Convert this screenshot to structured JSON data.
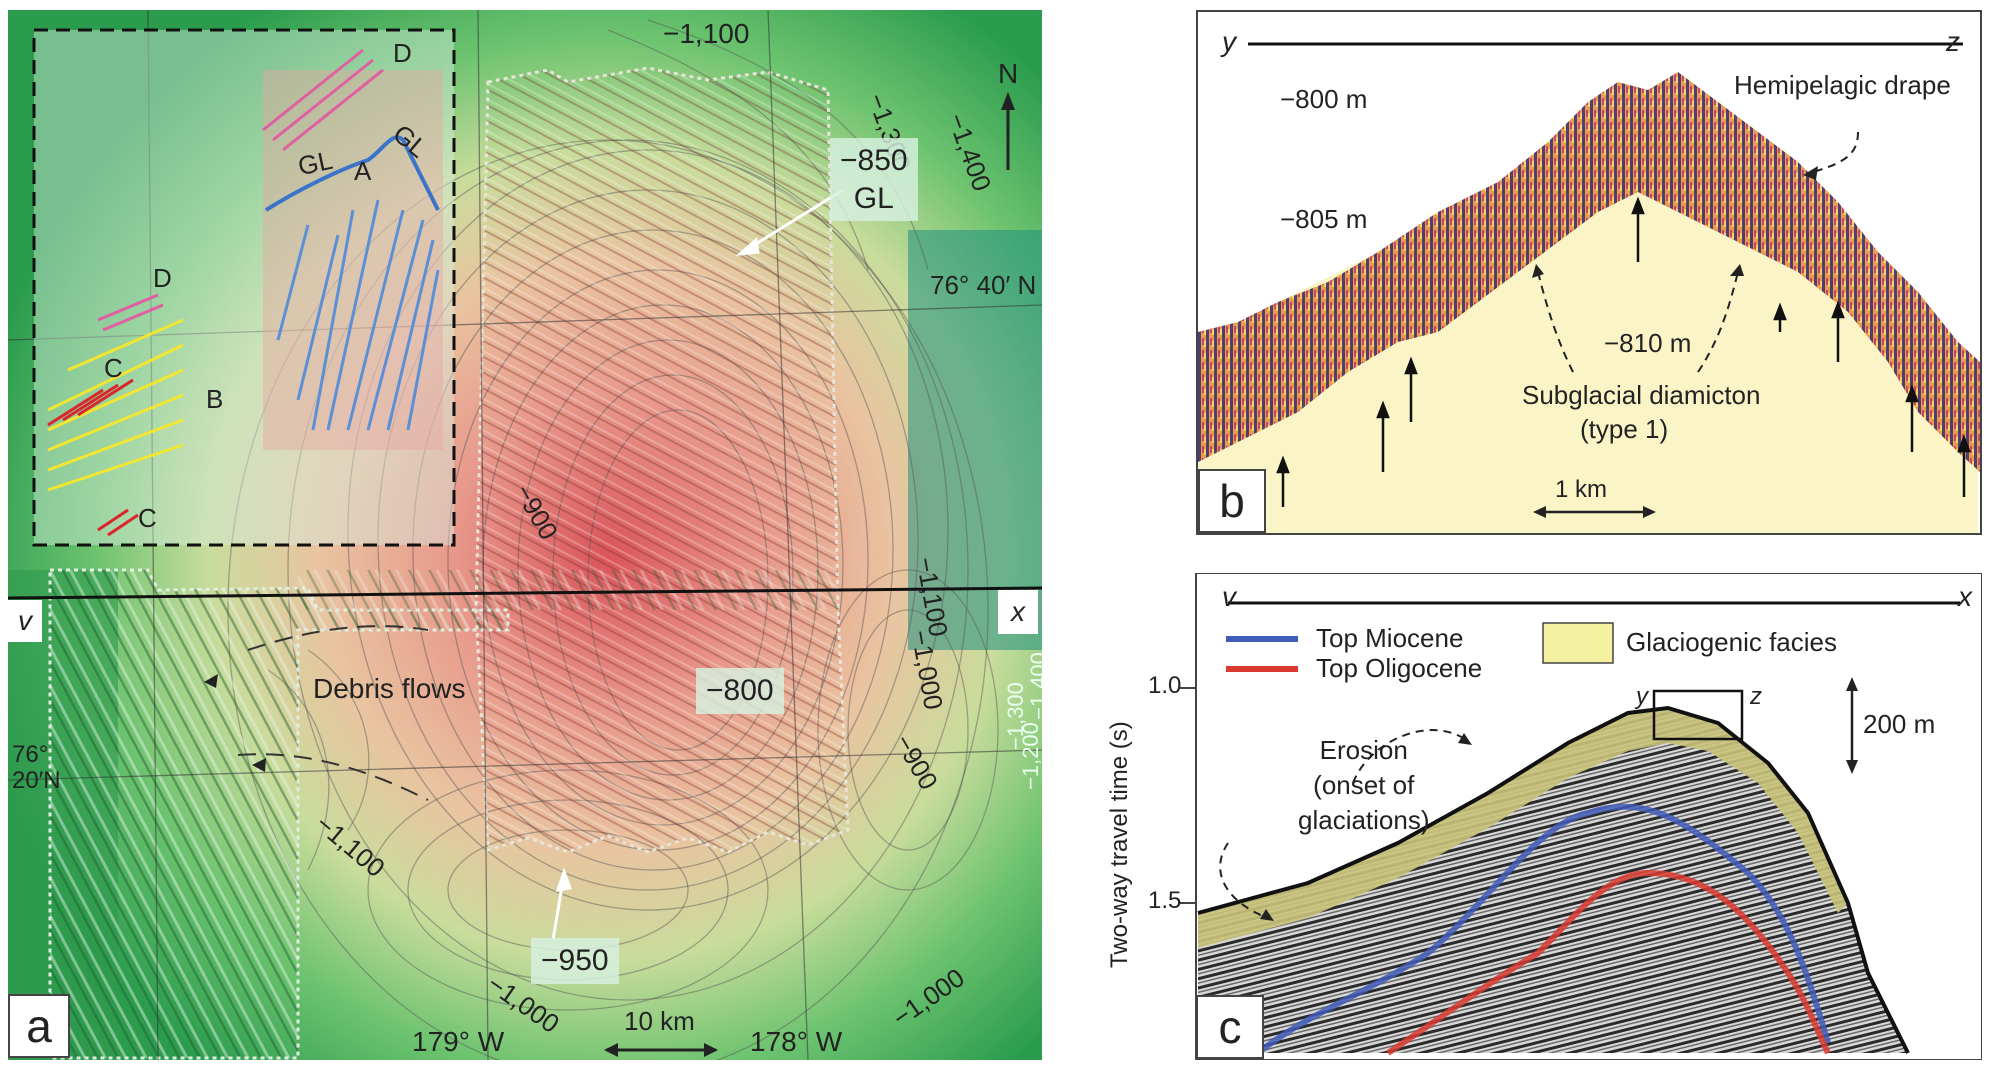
{
  "panel_a": {
    "letter": "a",
    "contours": [
      "−1,100",
      "−1,300",
      "−1,400",
      "−1,100",
      "−1,000",
      "−1,400",
      "−1,300",
      "−1,200",
      "−900",
      "−900",
      "−1,100",
      "−1,000",
      "−1,000"
    ],
    "tags": {
      "gl_depth": "−850",
      "gl_label": "GL",
      "center_depth": "−800",
      "south_depth": "−950"
    },
    "inset_labels": {
      "d1": "D",
      "d2": "D",
      "gl1": "GL",
      "gl2": "GL",
      "a": "A",
      "b": "B",
      "c1": "C",
      "c2": "C"
    },
    "debris_flows": "Debris flows",
    "lat_76_40": "76° 40′ N",
    "lat_76_20_a": "76°",
    "lat_76_20_b": "20′N",
    "lon_179": "179° W",
    "lon_178": "178° W",
    "scale": "10 km",
    "north": "N",
    "profile_v": "v",
    "profile_x": "x",
    "colors": {
      "blue_arrows": "#5b8fd6",
      "red_arrows": "#d9262b",
      "yellow_arrows": "#f2e632",
      "pink_arrows": "#e05fa0",
      "grounding_line": "#3a74c9"
    }
  },
  "panel_b": {
    "letter": "b",
    "y": "y",
    "z": "z",
    "depth_800": "−800 m",
    "depth_805": "−805 m",
    "depth_810": "−810 m",
    "drape": "Hemipelagic drape",
    "diamicton1": "Subglacial diamicton",
    "diamicton2": "(type 1)",
    "scale": "1 km",
    "colors": {
      "fill": "#fbf4c6"
    }
  },
  "panel_c": {
    "letter": "c",
    "v": "v",
    "x": "x",
    "y": "y",
    "z": "z",
    "legend_miocene": "Top Miocene",
    "legend_oligocene": "Top Oligocene",
    "legend_glacio": "Glaciogenic facies",
    "erosion1": "Erosion",
    "erosion2": "(onset of",
    "erosion3": "glaciations)",
    "ylabel": "Two-way travel time (s)",
    "tick_1": "1.0",
    "tick_15": "1.5",
    "scale": "200 m",
    "colors": {
      "miocene": "#3f5cb8",
      "oligocene": "#d93a2f",
      "glacio": "#f3f0a0"
    }
  }
}
